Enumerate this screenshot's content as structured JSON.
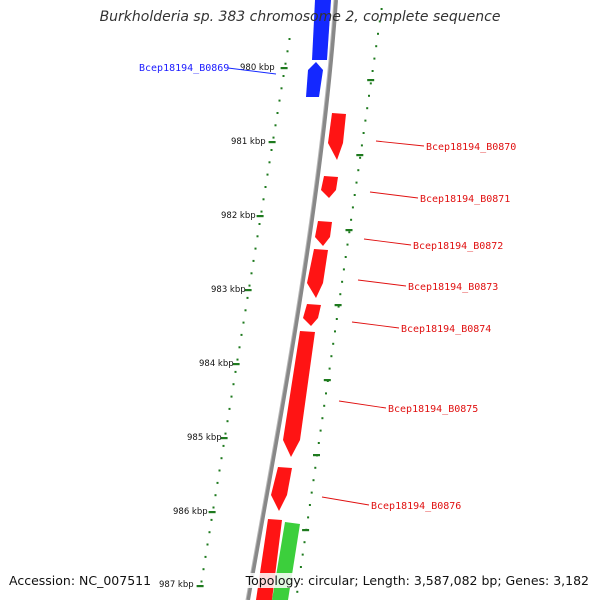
{
  "title": "Burkholderia sp. 383 chromosome 2, complete sequence",
  "accession_label": "Accession: NC_007511",
  "topology_label": "Topology: circular; Length: 3,587,082 bp; Genes: 3,182",
  "colors": {
    "backbone": "#8a8a8a",
    "ruler": "#1e7a1e",
    "forward_genes": "#ff1414",
    "reverse_genes": "#1428ff",
    "other_genes": "#3ccf3c"
  },
  "ruler_labels": [
    "980 kbp",
    "981 kbp",
    "982 kbp",
    "983 kbp",
    "984 kbp",
    "985 kbp",
    "986 kbp",
    "987 kbp"
  ],
  "gene_labels": [
    {
      "name": "Bcep18194_B0869",
      "strand": "reverse"
    },
    {
      "name": "Bcep18194_B0870",
      "strand": "forward"
    },
    {
      "name": "Bcep18194_B0871",
      "strand": "forward"
    },
    {
      "name": "Bcep18194_B0872",
      "strand": "forward"
    },
    {
      "name": "Bcep18194_B0873",
      "strand": "forward"
    },
    {
      "name": "Bcep18194_B0874",
      "strand": "forward"
    },
    {
      "name": "Bcep18194_B0875",
      "strand": "forward"
    },
    {
      "name": "Bcep18194_B0876",
      "strand": "forward"
    }
  ]
}
